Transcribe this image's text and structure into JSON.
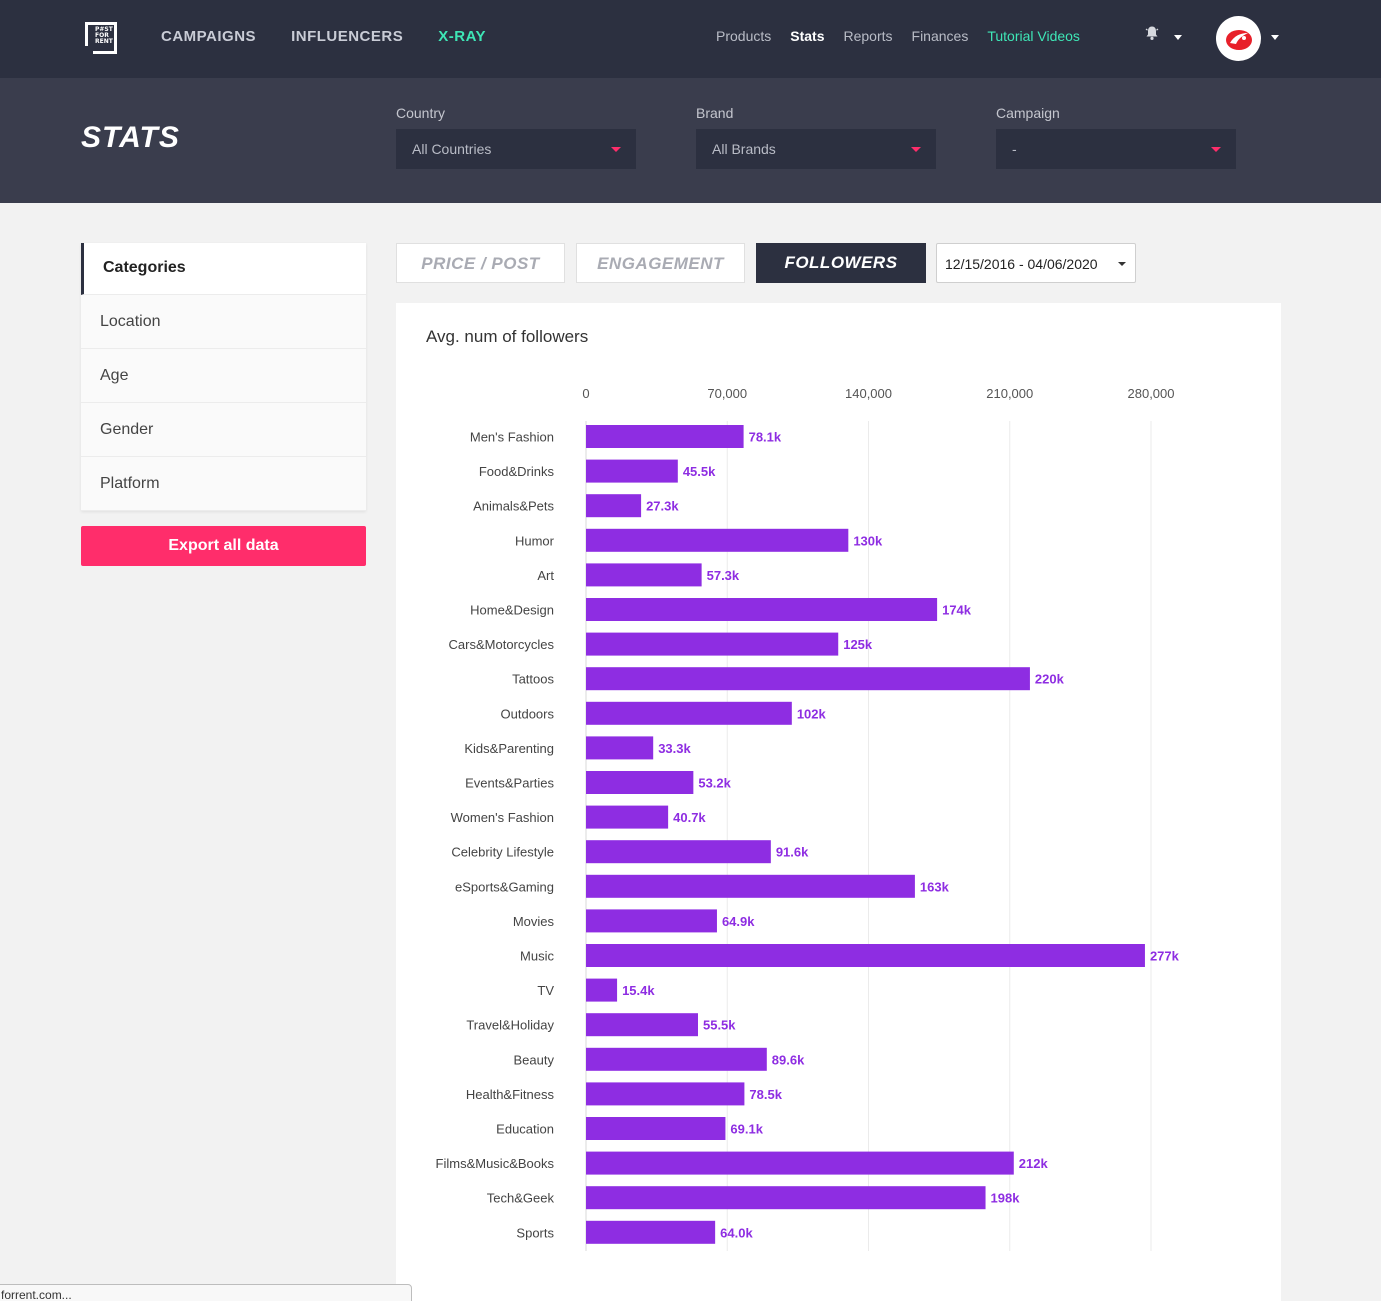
{
  "topnav": {
    "logo_text": "POST FOR RENT",
    "main": [
      {
        "label": "CAMPAIGNS",
        "accent": false
      },
      {
        "label": "INFLUENCERS",
        "accent": false
      },
      {
        "label": "X-RAY",
        "accent": true
      }
    ],
    "sub": [
      {
        "label": "Products",
        "state": "normal"
      },
      {
        "label": "Stats",
        "state": "active"
      },
      {
        "label": "Reports",
        "state": "normal"
      },
      {
        "label": "Finances",
        "state": "normal"
      },
      {
        "label": "Tutorial Videos",
        "state": "accent"
      }
    ],
    "icons": {
      "notifications": "bell-icon",
      "avatar": "brand-logo-avatar"
    }
  },
  "header": {
    "title": "STATS",
    "filters": [
      {
        "label": "Country",
        "value": "All Countries"
      },
      {
        "label": "Brand",
        "value": "All Brands"
      },
      {
        "label": "Campaign",
        "value": "-"
      }
    ]
  },
  "sidebar": {
    "header": "Categories",
    "items": [
      "Location",
      "Age",
      "Gender",
      "Platform"
    ],
    "export_label": "Export all data"
  },
  "tabs": [
    {
      "label": "PRICE / POST",
      "active": false
    },
    {
      "label": "ENGAGEMENT",
      "active": false
    },
    {
      "label": "FOLLOWERS",
      "active": true
    }
  ],
  "date_range": "12/15/2016 - 04/06/2020",
  "colors": {
    "accent_pink": "#ff2d6b",
    "accent_green": "#3ee6b6",
    "bar_purple": "#8e2de2",
    "nav_dark": "#2c3040"
  },
  "status_url": "forrent.com...",
  "chart_data": {
    "type": "bar",
    "orientation": "horizontal",
    "title": "Avg. num of followers",
    "xlim": [
      0,
      280000
    ],
    "x_ticks": [
      0,
      70000,
      140000,
      210000,
      280000
    ],
    "x_tick_labels": [
      "0",
      "70,000",
      "140,000",
      "210,000",
      "280,000"
    ],
    "grid": true,
    "categories": [
      "Men's Fashion",
      "Food&Drinks",
      "Animals&Pets",
      "Humor",
      "Art",
      "Home&Design",
      "Cars&Motorcycles",
      "Tattoos",
      "Outdoors",
      "Kids&Parenting",
      "Events&Parties",
      "Women's Fashion",
      "Celebrity Lifestyle",
      "eSports&Gaming",
      "Movies",
      "Music",
      "TV",
      "Travel&Holiday",
      "Beauty",
      "Health&Fitness",
      "Education",
      "Films&Music&Books",
      "Tech&Geek",
      "Sports"
    ],
    "values": [
      78100,
      45500,
      27300,
      130000,
      57300,
      174000,
      125000,
      220000,
      102000,
      33300,
      53200,
      40700,
      91600,
      163000,
      64900,
      277000,
      15400,
      55500,
      89600,
      78500,
      69100,
      212000,
      198000,
      64000
    ],
    "value_labels": [
      "78.1k",
      "45.5k",
      "27.3k",
      "130k",
      "57.3k",
      "174k",
      "125k",
      "220k",
      "102k",
      "33.3k",
      "53.2k",
      "40.7k",
      "91.6k",
      "163k",
      "64.9k",
      "277k",
      "15.4k",
      "55.5k",
      "89.6k",
      "78.5k",
      "69.1k",
      "212k",
      "198k",
      "64.0k"
    ]
  }
}
